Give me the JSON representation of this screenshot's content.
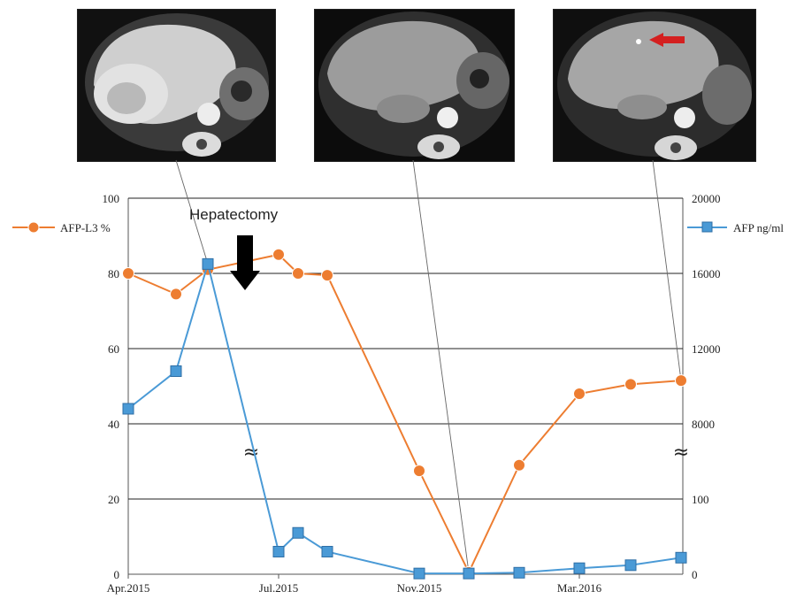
{
  "chart_data": {
    "type": "line",
    "title": "",
    "xlabel": "",
    "x_tick_labels": [
      "Apr.2015",
      "Jul.2015",
      "Nov.2015",
      "Mar.2016"
    ],
    "left_axis": {
      "ticks": [
        "0",
        "20",
        "40",
        "60",
        "80",
        "100"
      ],
      "ylim": [
        0,
        100
      ]
    },
    "right_axis": {
      "ticks": [
        "0",
        "100",
        "8000",
        "12000",
        "16000",
        "20000"
      ],
      "broken_scale": true,
      "break_symbol": "≈"
    },
    "series": [
      {
        "name": "AFP-L3 %",
        "axis": "left",
        "color": "#ED7D31",
        "marker": "circle",
        "values": [
          80,
          74.5,
          81,
          85,
          80,
          79.5,
          27.5,
          0.5,
          29,
          48,
          50.5,
          51.5
        ]
      },
      {
        "name": "AFP ng/ml",
        "axis": "right",
        "color": "#4A9AD6",
        "marker": "square",
        "values": [
          8800,
          10800,
          16500,
          30,
          55,
          30,
          1,
          1,
          2,
          8,
          12,
          22
        ]
      }
    ],
    "annotations": [
      {
        "text": "Hepatectomy",
        "type": "arrow-down"
      }
    ],
    "grid": true,
    "legend_placement": "top-left and top-right",
    "images_above": 3
  }
}
